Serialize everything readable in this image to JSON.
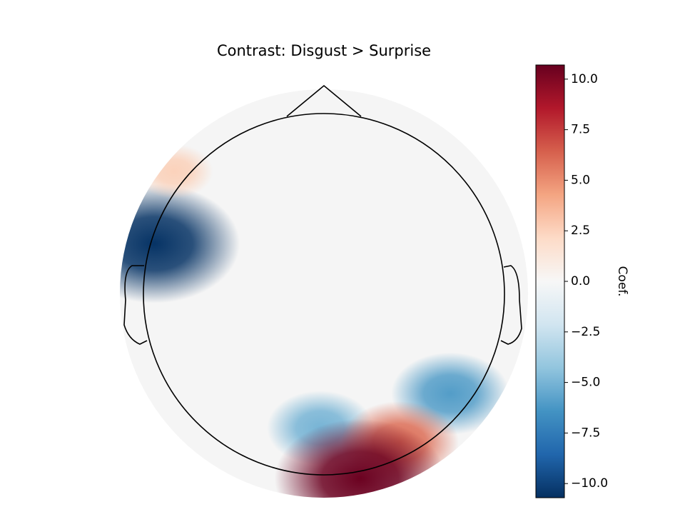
{
  "chart_data": {
    "type": "topomap",
    "title": "Contrast: Disgust > Surprise",
    "colorbar_label": "Coef.",
    "colormap": "RdBu_r",
    "clim": [
      -10.7,
      10.7
    ],
    "cticks": [
      {
        "value": -10,
        "label": "−10.0"
      },
      {
        "value": -7.5,
        "label": "−7.5"
      },
      {
        "value": -5,
        "label": "−5.0"
      },
      {
        "value": -2.5,
        "label": "−2.5"
      },
      {
        "value": 0,
        "label": "0.0"
      },
      {
        "value": 2.5,
        "label": "2.5"
      },
      {
        "value": 5,
        "label": "5.0"
      },
      {
        "value": 7.5,
        "label": "7.5"
      },
      {
        "value": 10,
        "label": "10.0"
      }
    ],
    "peaks": [
      {
        "x": -0.94,
        "y": 0.28,
        "value": -10.6
      },
      {
        "x": 0.7,
        "y": -0.55,
        "value": -6
      },
      {
        "x": -0.02,
        "y": -0.74,
        "value": -5
      },
      {
        "x": 0.42,
        "y": -0.82,
        "value": 6
      },
      {
        "x": 0.2,
        "y": -1.02,
        "value": 10.6
      },
      {
        "x": -0.83,
        "y": 0.68,
        "value": 2.5
      }
    ]
  }
}
